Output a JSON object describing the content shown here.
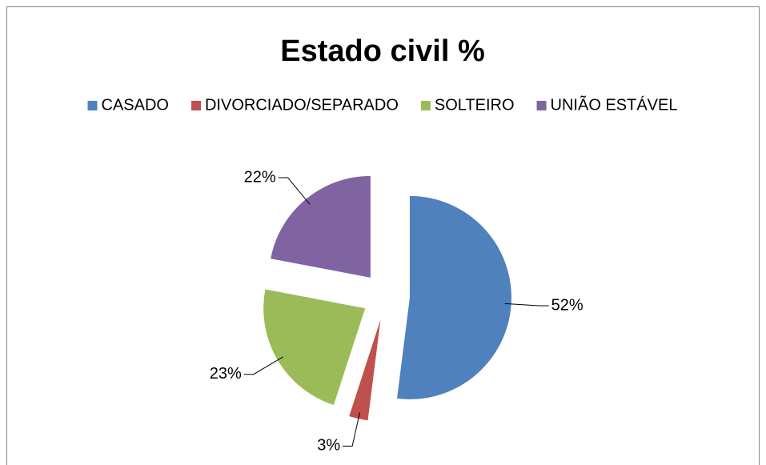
{
  "chart_data": {
    "type": "pie",
    "title": "Estado civil %",
    "categories": [
      "CASADO",
      "DIVORCIADO/SEPARADO",
      "SOLTEIRO",
      "UNIÃO ESTÁVEL"
    ],
    "values": [
      52,
      3,
      23,
      22
    ],
    "value_labels": [
      "52%",
      "3%",
      "23%",
      "22%"
    ],
    "colors": [
      "#4f81bd",
      "#c0504d",
      "#9bbb59",
      "#8064a2"
    ],
    "legend": "top"
  }
}
